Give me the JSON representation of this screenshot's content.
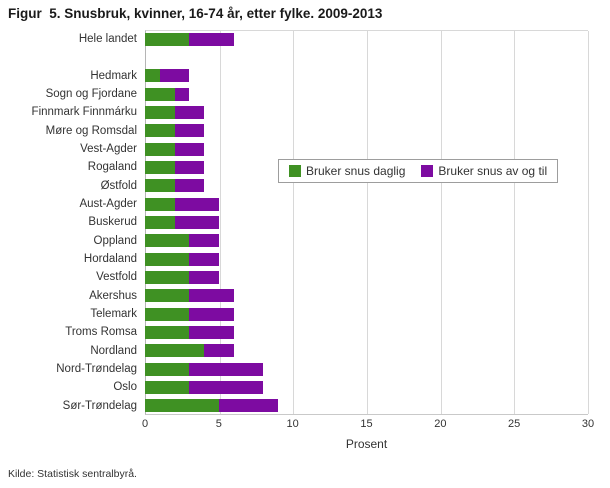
{
  "title": "Figur  5. Snusbruk, kvinner, 16-74 år, etter fylke. 2009-2013",
  "source": "Kilde: Statistisk sentralbyrå.",
  "colors": {
    "daily": "#3f9123",
    "occasional": "#7d0ba1"
  },
  "chart_data": {
    "type": "bar",
    "orientation": "horizontal",
    "stacked": true,
    "title": "Figur  5. Snusbruk, kvinner, 16-74 år, etter fylke. 2009-2013",
    "xlabel": "Prosent",
    "xlim": [
      0,
      30
    ],
    "xticks": [
      0,
      5,
      10,
      15,
      20,
      25,
      30
    ],
    "grid": true,
    "legend_position": "inside-right",
    "categories": [
      "Hele landet",
      "",
      "Hedmark",
      "Sogn og Fjordane",
      "Finnmark Finnmárku",
      "Møre og Romsdal",
      "Vest-Agder",
      "Rogaland",
      "Østfold",
      "Aust-Agder",
      "Buskerud",
      "Oppland",
      "Hordaland",
      "Vestfold",
      "Akershus",
      "Telemark",
      "Troms Romsa",
      "Nordland",
      "Nord-Trøndelag",
      "Oslo",
      "Sør-Trøndelag"
    ],
    "series": [
      {
        "name": "Bruker snus daglig",
        "color": "#3f9123",
        "values": [
          3,
          null,
          1,
          2,
          2,
          2,
          2,
          2,
          2,
          2,
          2,
          3,
          3,
          3,
          3,
          3,
          3,
          4,
          3,
          3,
          5
        ]
      },
      {
        "name": "Bruker snus av og til",
        "color": "#7d0ba1",
        "values": [
          3,
          null,
          2,
          1,
          2,
          2,
          2,
          2,
          2,
          3,
          3,
          2,
          2,
          2,
          3,
          3,
          3,
          2,
          5,
          5,
          4
        ]
      }
    ]
  }
}
